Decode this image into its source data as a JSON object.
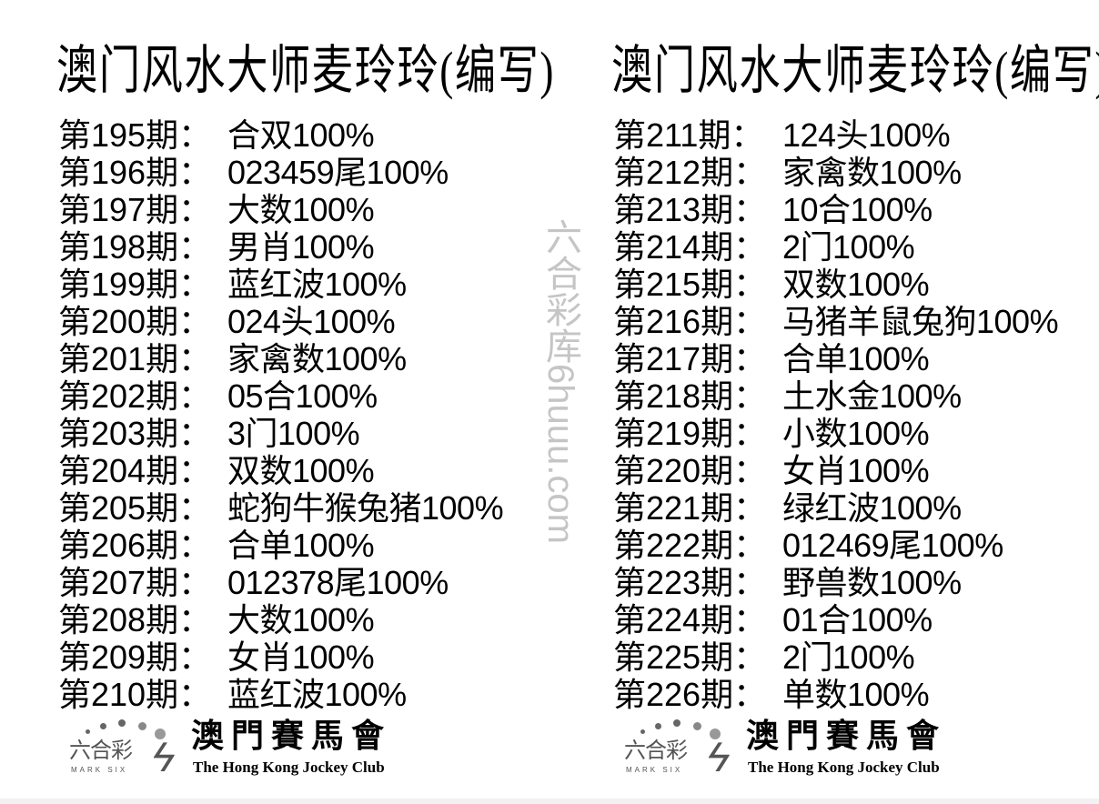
{
  "watermark": "六合彩库6huuu.com",
  "columns": [
    {
      "title": "澳门风水大师麦玲玲(编写)",
      "rows": [
        {
          "label": "第195期：",
          "value": "合双100%"
        },
        {
          "label": "第196期：",
          "value": "023459尾100%"
        },
        {
          "label": "第197期：",
          "value": "大数100%"
        },
        {
          "label": "第198期：",
          "value": "男肖100%"
        },
        {
          "label": "第199期：",
          "value": "蓝红波100%"
        },
        {
          "label": "第200期：",
          "value": "024头100%"
        },
        {
          "label": "第201期：",
          "value": "家禽数100%"
        },
        {
          "label": "第202期：",
          "value": "05合100%"
        },
        {
          "label": "第203期：",
          "value": "3门100%"
        },
        {
          "label": "第204期：",
          "value": "双数100%"
        },
        {
          "label": "第205期：",
          "value": "蛇狗牛猴兔猪100%"
        },
        {
          "label": "第206期：",
          "value": "合单100%"
        },
        {
          "label": "第207期：",
          "value": "012378尾100%"
        },
        {
          "label": "第208期：",
          "value": "大数100%"
        },
        {
          "label": "第209期：",
          "value": "女肖100%"
        },
        {
          "label": "第210期：",
          "value": "蓝红波100%"
        }
      ]
    },
    {
      "title": "澳门风水大师麦玲玲(编写)",
      "rows": [
        {
          "label": "第211期：",
          "value": "124头100%"
        },
        {
          "label": "第212期：",
          "value": "家禽数100%"
        },
        {
          "label": "第213期：",
          "value": "10合100%"
        },
        {
          "label": "第214期：",
          "value": "2门100%"
        },
        {
          "label": "第215期：",
          "value": "双数100%"
        },
        {
          "label": "第216期：",
          "value": "马猪羊鼠兔狗100%"
        },
        {
          "label": "第217期：",
          "value": "合单100%"
        },
        {
          "label": "第218期：",
          "value": "土水金100%"
        },
        {
          "label": "第219期：",
          "value": "小数100%"
        },
        {
          "label": "第220期：",
          "value": "女肖100%"
        },
        {
          "label": "第221期：",
          "value": "绿红波100%"
        },
        {
          "label": "第222期：",
          "value": "012469尾100%"
        },
        {
          "label": "第223期：",
          "value": "野兽数100%"
        },
        {
          "label": "第224期：",
          "value": "01合100%"
        },
        {
          "label": "第225期：",
          "value": "2门100%"
        },
        {
          "label": "第226期：",
          "value": "单数100%"
        }
      ]
    }
  ],
  "logo": {
    "mark_six_cn": "六合彩",
    "mark_six_en": "MARK SIX",
    "club_cn": "澳門賽馬會",
    "club_en": "The Hong Kong Jockey Club"
  }
}
